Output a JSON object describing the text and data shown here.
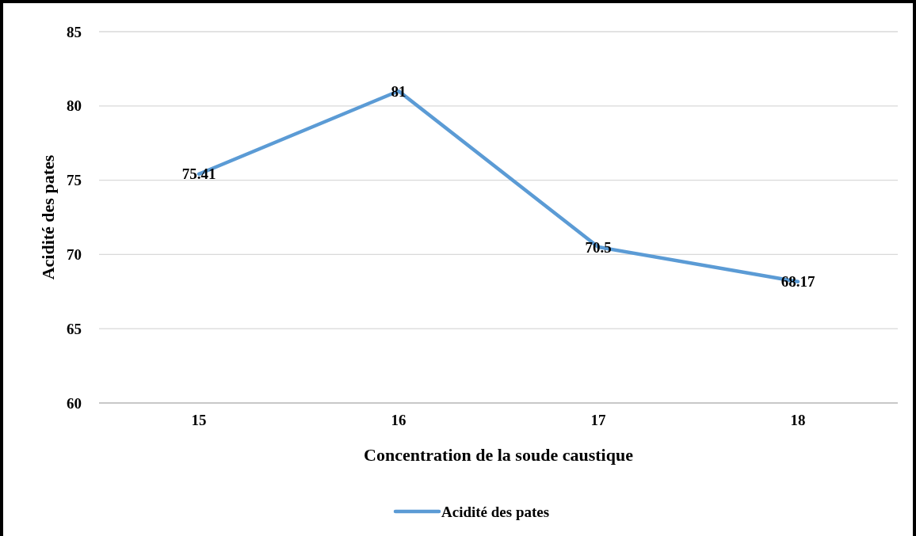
{
  "chart_data": {
    "type": "line",
    "xlabel": "Concentration de la soude caustique",
    "ylabel": "Acidité des pates",
    "categories": [
      "15",
      "16",
      "17",
      "18"
    ],
    "series": [
      {
        "name": "Acidité des pates",
        "color": "#5b9bd5",
        "values": [
          75.41,
          81,
          70.5,
          68.17
        ]
      }
    ],
    "ylim": [
      60,
      85
    ],
    "yticks": [
      60,
      65,
      70,
      75,
      80,
      85
    ],
    "grid": "y",
    "legend": "bottom",
    "data_labels": true,
    "marker": "none",
    "line_style": "solid"
  }
}
